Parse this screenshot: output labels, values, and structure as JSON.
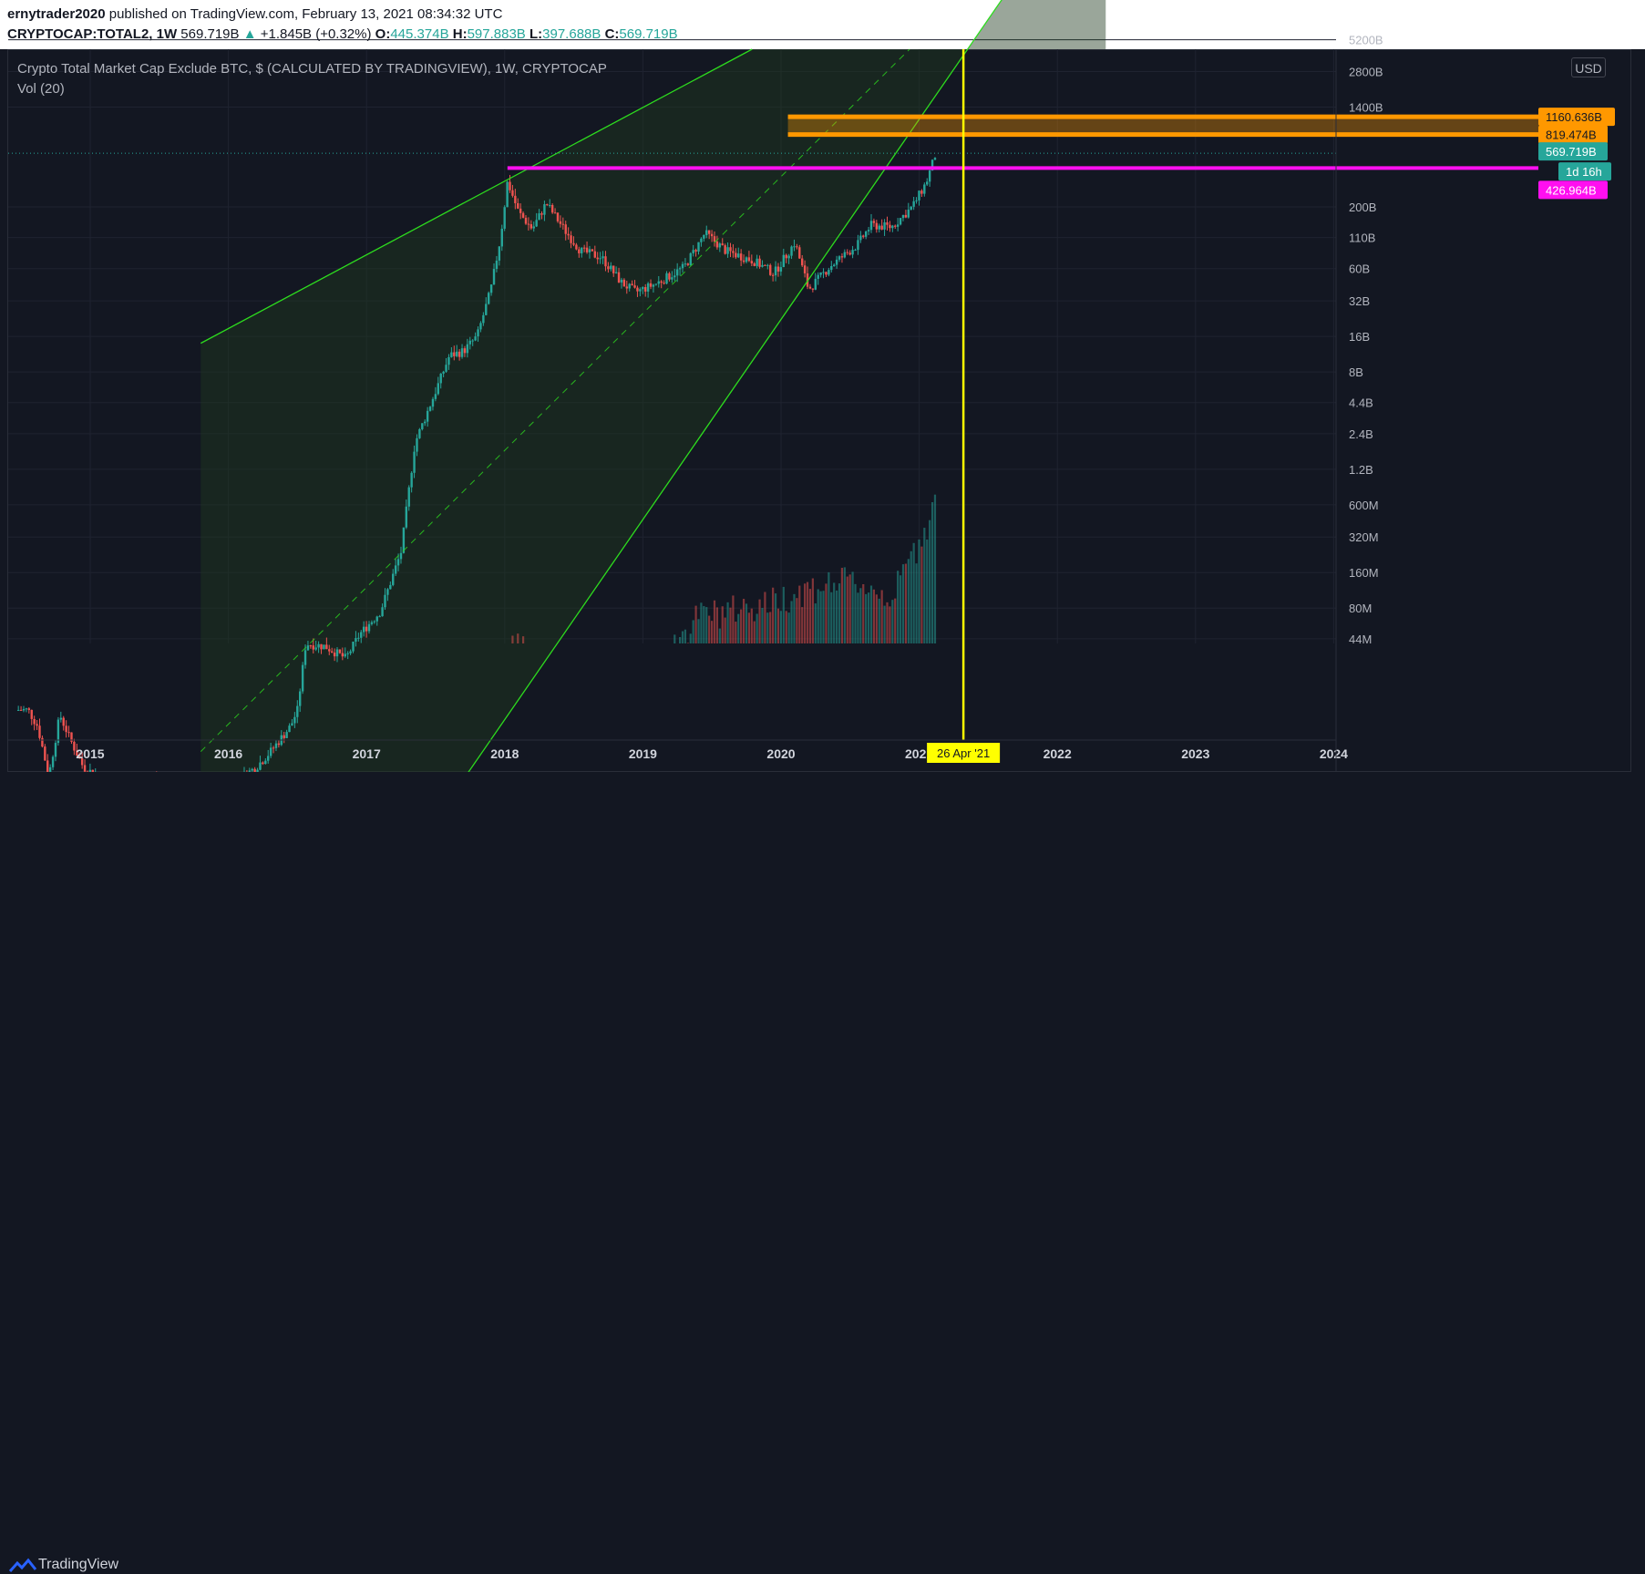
{
  "header": {
    "author": "ernytrader2020",
    "published": "published on TradingView.com, February 13, 2021 08:34:32 UTC",
    "symbol": "CRYPTOCAP:TOTAL2, 1W",
    "last": "569.719B",
    "arrow": "▲",
    "change": "+1.845B (+0.32%)",
    "o_label": "O:",
    "o_val": "445.374B",
    "h_label": "H:",
    "h_val": "597.883B",
    "l_label": "L:",
    "l_val": "397.688B",
    "c_label": "C:",
    "c_val": "569.719B"
  },
  "legend": {
    "title": "Crypto Total Market Cap Exclude BTC, $ (CALCULATED BY TRADINGVIEW), 1W, CRYPTOCAP",
    "volume": "Vol (20)",
    "currency": "USD"
  },
  "footer": {
    "brand": "TradingView"
  },
  "colors": {
    "background": "#131722",
    "up": "#26a69a",
    "down": "#ef5350",
    "channel": "#2ddc1e",
    "resistance": "#ff0ff0",
    "target_zone": "#ff9800",
    "vline": "#ffff00"
  },
  "chart_data": {
    "type": "candlestick",
    "scale": "log",
    "x_ticks": [
      "2015",
      "2016",
      "2017",
      "2018",
      "2019",
      "2020",
      "2021",
      "2022",
      "2023",
      "2024"
    ],
    "y_ticks": [
      "5200B",
      "2800B",
      "1400B",
      "200B",
      "110B",
      "60B",
      "32B",
      "16B",
      "8B",
      "4.4B",
      "2.4B",
      "1.2B",
      "600M",
      "320M",
      "160M",
      "80M",
      "44M"
    ],
    "price_labels": [
      {
        "text": "1160.636B",
        "color": "#ff9800"
      },
      {
        "text": "819.474B",
        "color": "#ff9800"
      },
      {
        "text": "569.719B",
        "color": "#26a69a"
      },
      {
        "text": "1d 16h",
        "color": "#26a69a"
      },
      {
        "text": "426.964B",
        "color": "#ff0ff0"
      }
    ],
    "vline_label": "26 Apr '21",
    "price_path": [
      [
        2014.55,
        11
      ],
      [
        2014.62,
        8
      ],
      [
        2014.7,
        3
      ],
      [
        2014.78,
        10
      ],
      [
        2014.86,
        6
      ],
      [
        2014.95,
        3.6
      ],
      [
        2015.1,
        2.8
      ],
      [
        2015.3,
        2.4
      ],
      [
        2015.45,
        2.9
      ],
      [
        2015.55,
        2.0
      ],
      [
        2015.75,
        2.4
      ],
      [
        2015.9,
        2.0
      ],
      [
        2016.05,
        2.7
      ],
      [
        2016.2,
        3.6
      ],
      [
        2016.3,
        4.8
      ],
      [
        2016.45,
        8
      ],
      [
        2016.5,
        11
      ],
      [
        2016.56,
        40
      ],
      [
        2016.7,
        38
      ],
      [
        2016.85,
        30
      ],
      [
        2016.95,
        48
      ],
      [
        2017.1,
        75
      ],
      [
        2017.25,
        240
      ],
      [
        2017.35,
        2000
      ],
      [
        2017.5,
        5500
      ],
      [
        2017.6,
        11000
      ],
      [
        2017.7,
        12000
      ],
      [
        2017.8,
        16000
      ],
      [
        2017.9,
        40000
      ],
      [
        2017.97,
        110000
      ],
      [
        2018.02,
        330000
      ],
      [
        2018.1,
        180000
      ],
      [
        2018.2,
        130000
      ],
      [
        2018.3,
        215000
      ],
      [
        2018.45,
        120000
      ],
      [
        2018.55,
        85000
      ],
      [
        2018.7,
        75000
      ],
      [
        2018.85,
        45000
      ],
      [
        2018.95,
        38000
      ],
      [
        2019.1,
        45000
      ],
      [
        2019.3,
        62000
      ],
      [
        2019.45,
        120000
      ],
      [
        2019.6,
        85000
      ],
      [
        2019.8,
        70000
      ],
      [
        2019.95,
        55000
      ],
      [
        2020.1,
        100000
      ],
      [
        2020.2,
        40000
      ],
      [
        2020.35,
        62000
      ],
      [
        2020.55,
        95000
      ],
      [
        2020.65,
        140000
      ],
      [
        2020.8,
        135000
      ],
      [
        2020.95,
        200000
      ],
      [
        2021.05,
        320000
      ],
      [
        2021.12,
        569719
      ]
    ],
    "volume_path": [
      [
        2016.0,
        0.3
      ],
      [
        2017.0,
        1
      ],
      [
        2017.4,
        4
      ],
      [
        2017.9,
        25
      ],
      [
        2018.1,
        40
      ],
      [
        2018.5,
        20
      ],
      [
        2019.0,
        20
      ],
      [
        2019.4,
        70
      ],
      [
        2019.9,
        90
      ],
      [
        2020.2,
        120
      ],
      [
        2020.5,
        140
      ],
      [
        2020.8,
        100
      ],
      [
        2021.0,
        300
      ],
      [
        2021.12,
        650
      ]
    ],
    "channel": {
      "upper": [
        [
          2015.8,
          14000
        ],
        [
          2018.02,
          340000
        ]
      ],
      "lower": [
        [
          2015.8,
          0.0017
        ],
        [
          2020.15,
          40000
        ]
      ],
      "x_extent": [
        2015.8,
        2022.35
      ]
    },
    "levels": {
      "resistance": 426.964,
      "zone_top": 1160.636,
      "zone_bottom": 819.474
    },
    "vline_date": 2021.32,
    "annotations": [
      "26 Apr '21"
    ]
  }
}
